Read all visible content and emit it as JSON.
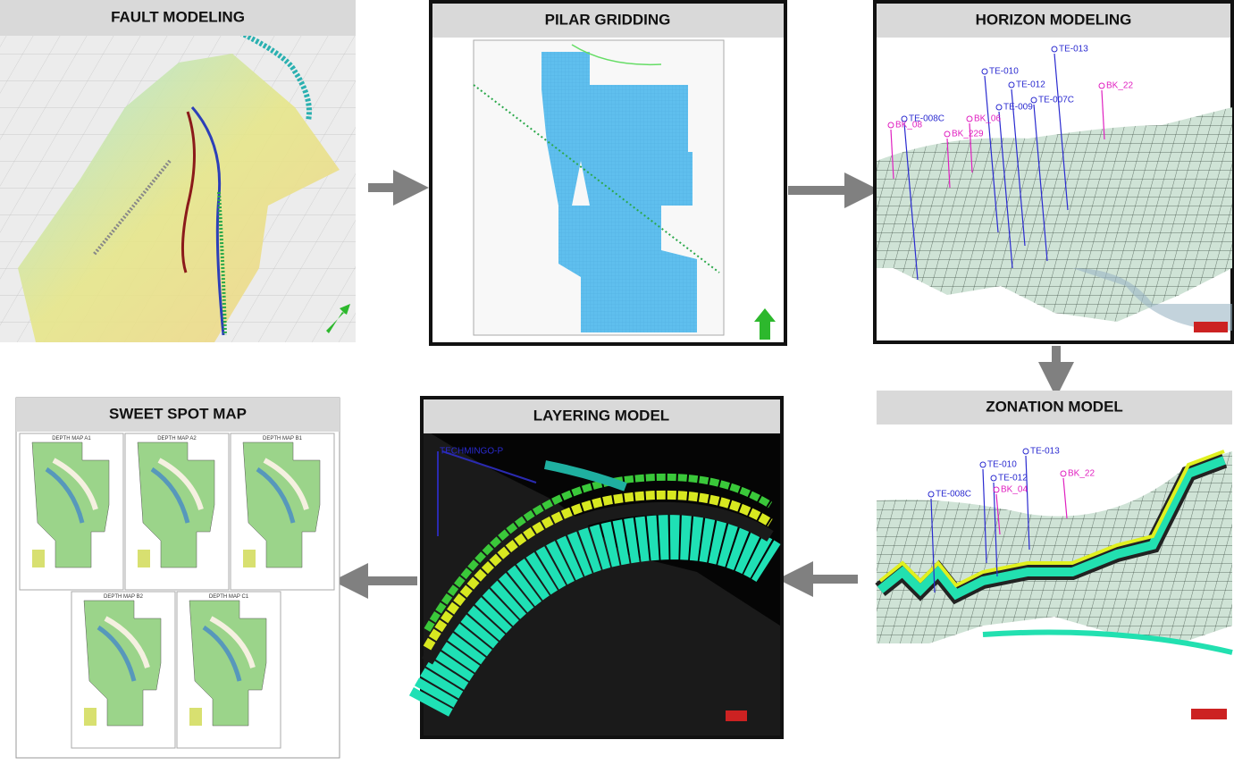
{
  "panels": [
    {
      "title": "FAULT MODELING"
    },
    {
      "title": "PILAR GRIDDING"
    },
    {
      "title": "HORIZON MODELING"
    },
    {
      "title": "ZONATION MODEL"
    },
    {
      "title": "LAYERING MODEL"
    },
    {
      "title": "SWEET SPOT MAP"
    }
  ],
  "horizon_wells": [
    "TE-013",
    "TE-010",
    "TE-012",
    "TE-007C",
    "TE-009",
    "TE-008C",
    "BK_22",
    "BK_08",
    "BK_06",
    "BK_229"
  ],
  "zonation_wells": [
    "TE-013",
    "TE-010",
    "TE-012",
    "TE-008C",
    "BK_22",
    "BK_04"
  ],
  "layering_well": "TECHMINGO-P",
  "depth_maps": [
    "DEPTH MAP A1",
    "DEPTH MAP A2",
    "DEPTH MAP B1",
    "DEPTH MAP B2",
    "DEPTH MAP C1"
  ]
}
